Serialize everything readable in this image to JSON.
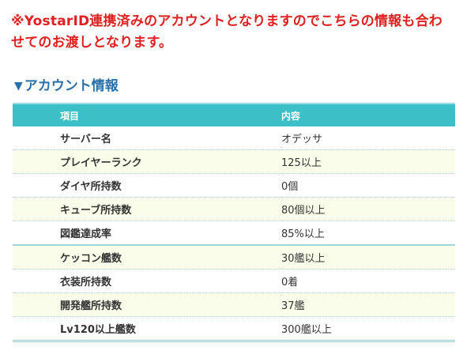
{
  "notice": {
    "text": "※YostarID連携済みのアカウントとなりますのでこちらの情報も合わせてのお渡しとなります。"
  },
  "section": {
    "triangle": "▼",
    "title": "アカウント情報"
  },
  "table": {
    "headers": {
      "item": "項目",
      "content": "内容"
    },
    "rows": [
      {
        "item": "サーバー名",
        "content": "オデッサ"
      },
      {
        "item": "プレイヤーランク",
        "content": "125以上"
      },
      {
        "item": "ダイヤ所持数",
        "content": "0個"
      },
      {
        "item": "キューブ所持数",
        "content": "80個以上"
      },
      {
        "item": "図鑑達成率",
        "content": "85%以上"
      },
      {
        "item": "ケッコン艦数",
        "content": "30艦以上"
      },
      {
        "item": "衣装所持数",
        "content": "0着"
      },
      {
        "item": "開発艦所持数",
        "content": "37艦"
      },
      {
        "item": "Lv120以上艦数",
        "content": "300艦以上"
      }
    ]
  },
  "colors": {
    "notice": "#e02020",
    "heading": "#2a6fa8",
    "header_bg": "#3dbfc7",
    "alt_row": "#f9fde9"
  }
}
